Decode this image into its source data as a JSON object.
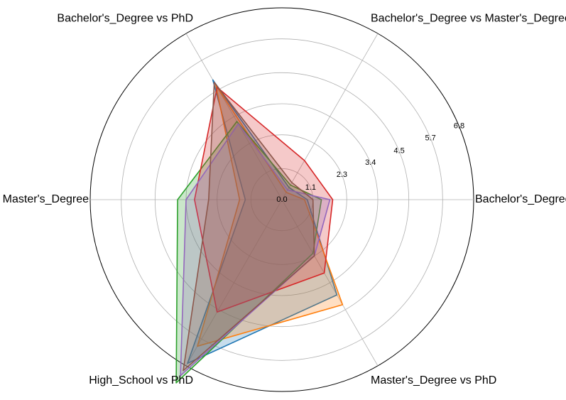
{
  "chart_data": {
    "type": "radar",
    "axes": [
      "Bachelor's_Degree vs High_School",
      "Bachelor's_Degree vs Master's_Degree",
      "Bachelor's_Degree vs PhD",
      "High_School vs Master's_Degree",
      "High_School vs PhD",
      "Master's_Degree vs PhD"
    ],
    "r_ticks": [
      0.0,
      1.1,
      2.3,
      3.4,
      4.5,
      5.7,
      6.8
    ],
    "r_tick_labels": [
      "0.0",
      "1.1",
      "2.3",
      "3.4",
      "4.5",
      "5.7",
      "6.8"
    ],
    "rlim": [
      0,
      6.8
    ],
    "grid": true,
    "series": [
      {
        "color": "#1f77b4",
        "values": [
          0.9,
          0.5,
          4.9,
          1.3,
          6.7,
          3.9
        ]
      },
      {
        "color": "#ff7f0e",
        "values": [
          0.8,
          0.3,
          4.7,
          1.5,
          6.0,
          4.3
        ]
      },
      {
        "color": "#2ca02c",
        "values": [
          1.4,
          0.6,
          3.2,
          3.7,
          7.5,
          2.2
        ]
      },
      {
        "color": "#d62728",
        "values": [
          1.8,
          1.6,
          4.6,
          3.1,
          4.6,
          3.0
        ]
      },
      {
        "color": "#9467bd",
        "values": [
          1.7,
          0.4,
          3.1,
          3.4,
          7.2,
          2.3
        ]
      },
      {
        "color": "#8c564b",
        "values": [
          1.1,
          0.7,
          4.8,
          2.6,
          7.0,
          2.3
        ]
      }
    ]
  }
}
